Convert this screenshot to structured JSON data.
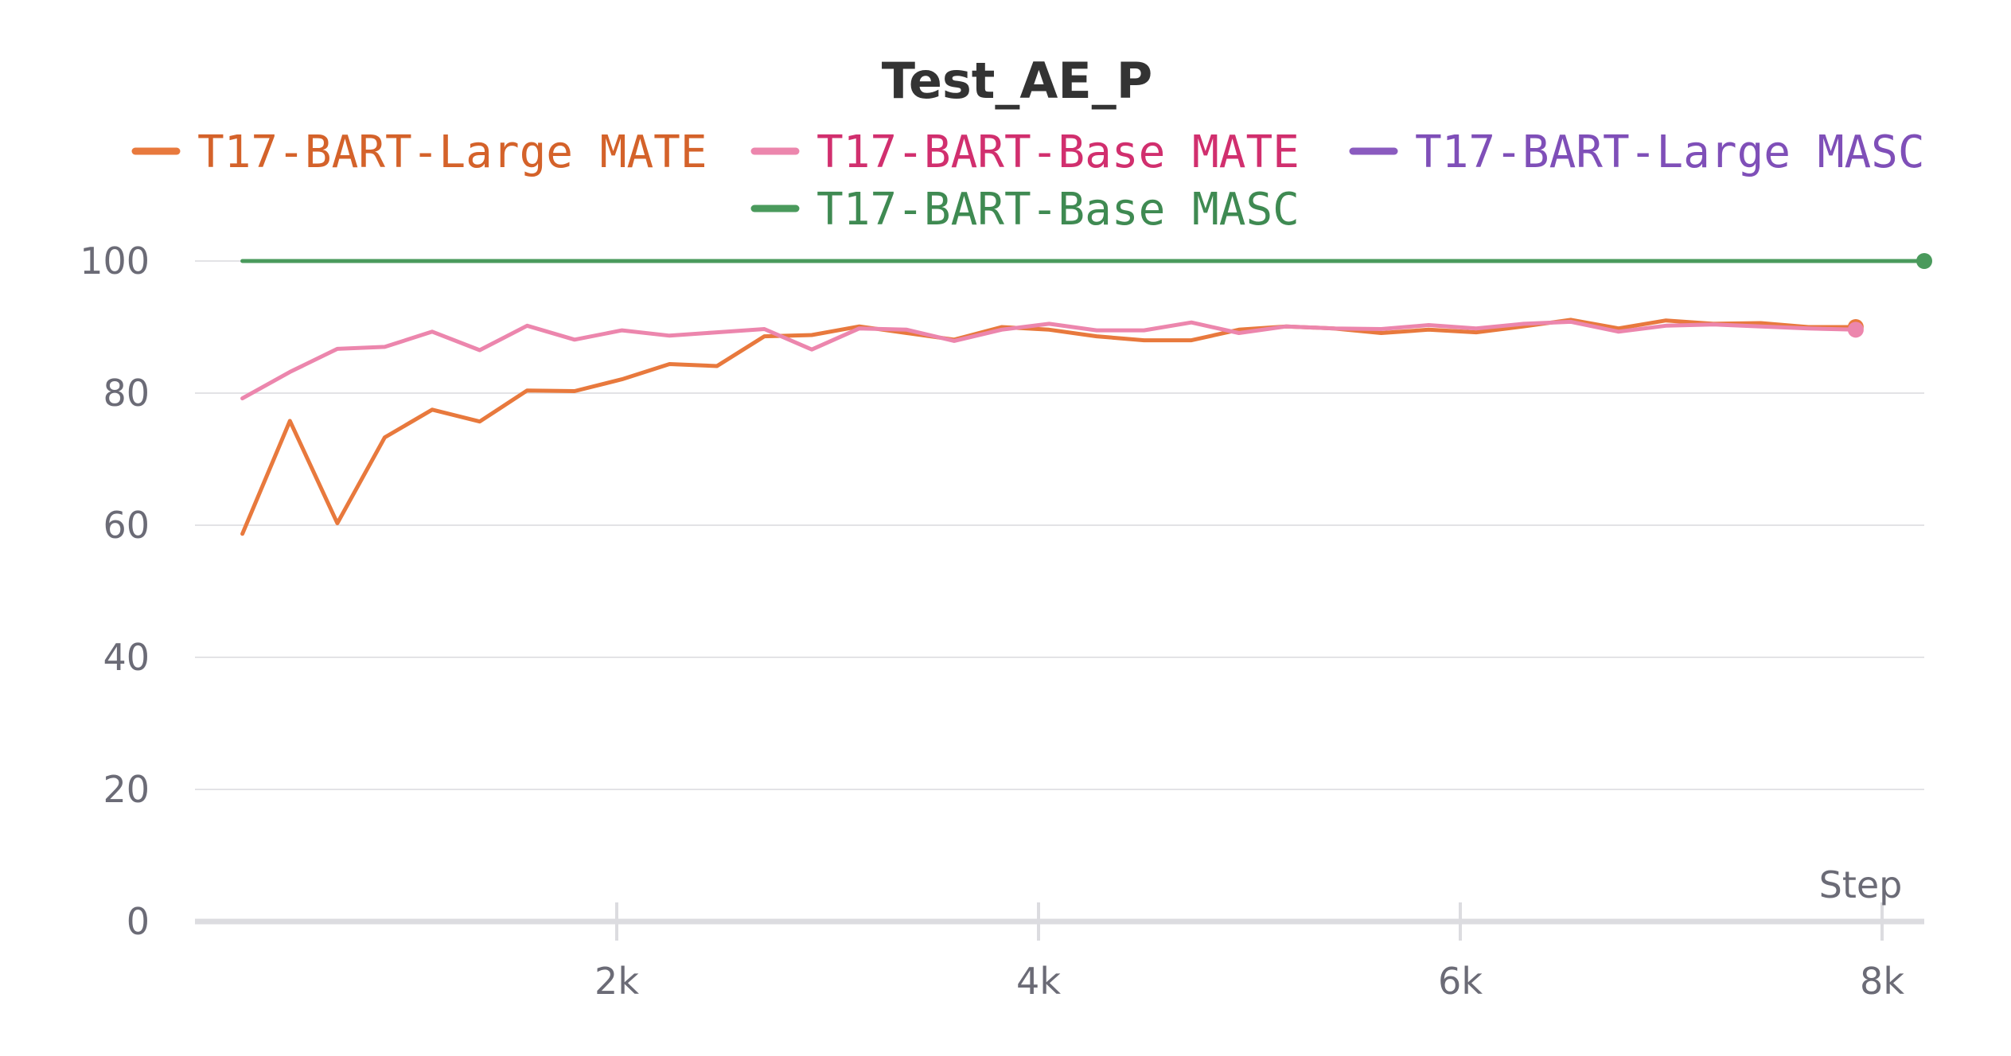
{
  "chart_data": {
    "type": "line",
    "title": "Test_AE_P",
    "xlabel": "Step",
    "ylabel": "",
    "xlim": [
      0,
      8200
    ],
    "ylim": [
      0,
      100
    ],
    "x_ticks": [
      {
        "value": 2000,
        "label": "2k"
      },
      {
        "value": 4000,
        "label": "4k"
      },
      {
        "value": 6000,
        "label": "6k"
      },
      {
        "value": 8000,
        "label": "8k"
      }
    ],
    "y_ticks": [
      {
        "value": 0,
        "label": "0"
      },
      {
        "value": 20,
        "label": "20"
      },
      {
        "value": 40,
        "label": "40"
      },
      {
        "value": 60,
        "label": "60"
      },
      {
        "value": 80,
        "label": "80"
      },
      {
        "value": 100,
        "label": "100"
      }
    ],
    "grid": true,
    "legend_position": "top",
    "series": [
      {
        "name": "T17-BART-Large MATE",
        "color": "#e8793d",
        "text_color": "#d4622a",
        "end_marker": true,
        "points": [
          [
            225,
            58.7
          ],
          [
            450,
            75.8
          ],
          [
            675,
            60.3
          ],
          [
            900,
            73.3
          ],
          [
            1125,
            77.5
          ],
          [
            1350,
            75.7
          ],
          [
            1575,
            80.4
          ],
          [
            1800,
            80.3
          ],
          [
            2025,
            82.1
          ],
          [
            2250,
            84.4
          ],
          [
            2475,
            84.1
          ],
          [
            2700,
            88.6
          ],
          [
            2925,
            88.8
          ],
          [
            3150,
            90.1
          ],
          [
            3375,
            89.1
          ],
          [
            3600,
            88.1
          ],
          [
            3825,
            90
          ],
          [
            4050,
            89.6
          ],
          [
            4275,
            88.6
          ],
          [
            4500,
            88
          ],
          [
            4725,
            88
          ],
          [
            4950,
            89.6
          ],
          [
            5175,
            90.1
          ],
          [
            5400,
            89.8
          ],
          [
            5625,
            89.1
          ],
          [
            5850,
            89.6
          ],
          [
            6075,
            89.2
          ],
          [
            6300,
            90.1
          ],
          [
            6525,
            91.1
          ],
          [
            6750,
            89.8
          ],
          [
            6975,
            91
          ],
          [
            7200,
            90.5
          ],
          [
            7425,
            90.6
          ],
          [
            7650,
            90
          ],
          [
            7875,
            90
          ]
        ]
      },
      {
        "name": "T17-BART-Base MATE",
        "color": "#ec86ad",
        "text_color": "#d12f6e",
        "end_marker": true,
        "points": [
          [
            225,
            79.2
          ],
          [
            450,
            83.2
          ],
          [
            675,
            86.7
          ],
          [
            900,
            87
          ],
          [
            1125,
            89.3
          ],
          [
            1350,
            86.5
          ],
          [
            1575,
            90.2
          ],
          [
            1800,
            88.1
          ],
          [
            2025,
            89.5
          ],
          [
            2250,
            88.7
          ],
          [
            2475,
            89.2
          ],
          [
            2700,
            89.7
          ],
          [
            2925,
            86.6
          ],
          [
            3150,
            89.8
          ],
          [
            3375,
            89.6
          ],
          [
            3600,
            87.9
          ],
          [
            3825,
            89.6
          ],
          [
            4050,
            90.5
          ],
          [
            4275,
            89.5
          ],
          [
            4500,
            89.5
          ],
          [
            4725,
            90.7
          ],
          [
            4950,
            89.1
          ],
          [
            5175,
            90.1
          ],
          [
            5400,
            89.8
          ],
          [
            5625,
            89.7
          ],
          [
            5850,
            90.3
          ],
          [
            6075,
            89.8
          ],
          [
            6300,
            90.5
          ],
          [
            6525,
            90.8
          ],
          [
            6750,
            89.3
          ],
          [
            6975,
            90.2
          ],
          [
            7200,
            90.4
          ],
          [
            7425,
            90.1
          ],
          [
            7650,
            89.8
          ],
          [
            7875,
            89.6
          ]
        ]
      },
      {
        "name": "T17-BART-Large MASC",
        "color": "#8a5bbf",
        "text_color": "#7f4fb8",
        "end_marker": false,
        "points": []
      },
      {
        "name": "T17-BART-Base MASC",
        "color": "#4a9a5c",
        "text_color": "#3f8a52",
        "end_marker": true,
        "points": [
          [
            225,
            100
          ],
          [
            8200,
            100
          ]
        ]
      }
    ]
  }
}
